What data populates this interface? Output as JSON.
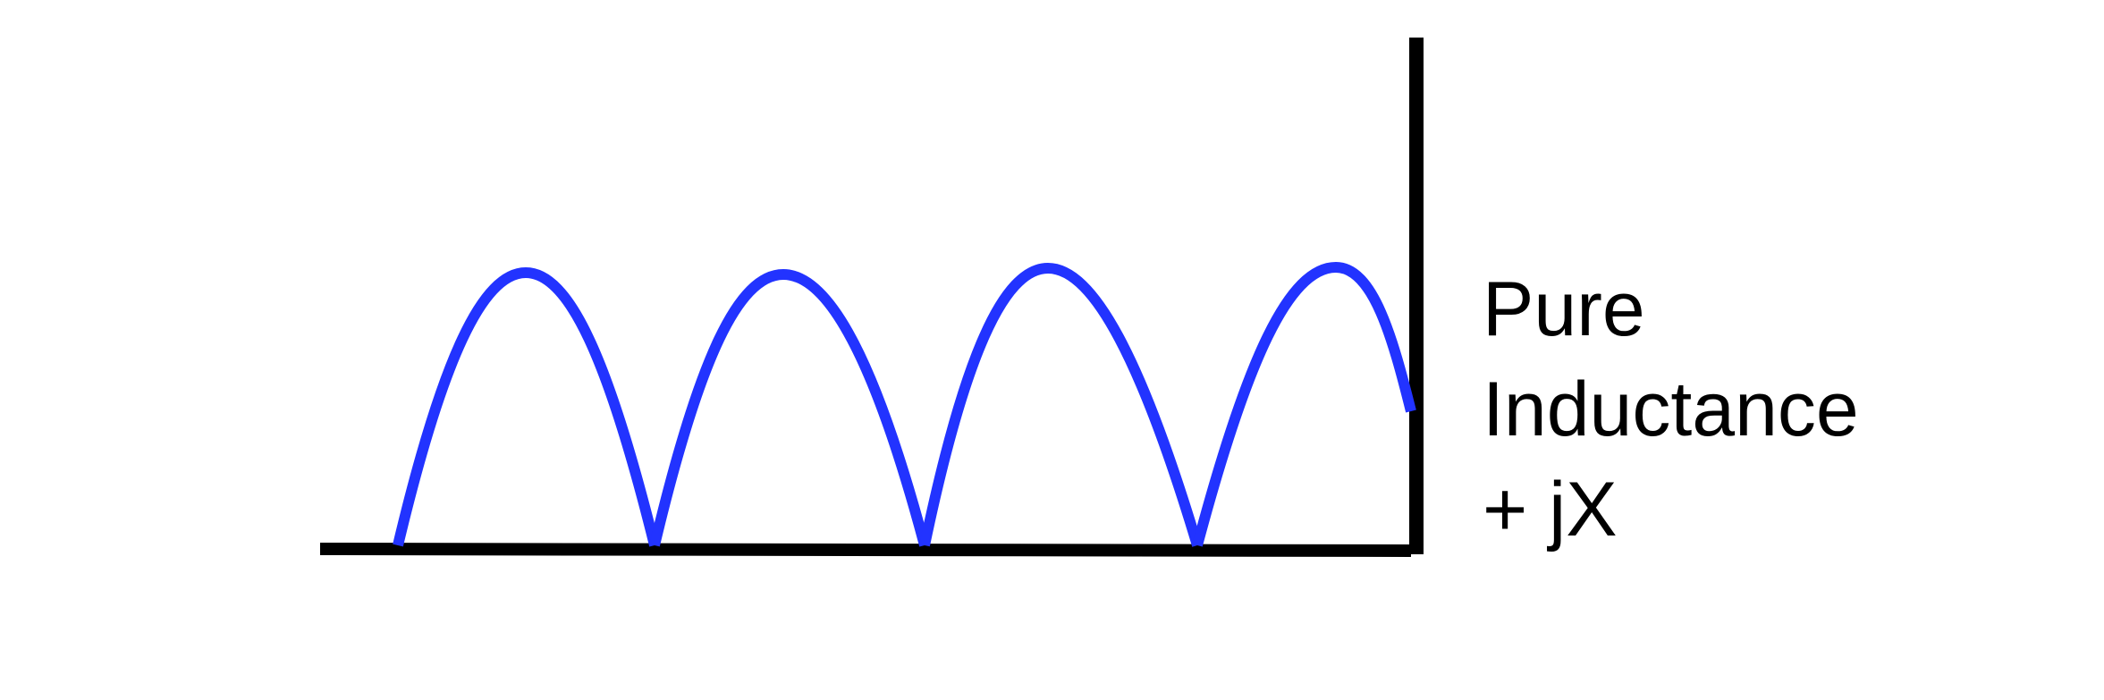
{
  "diagram": {
    "label": {
      "line1": "Pure",
      "line2": "Inductance",
      "line3": "+ jX"
    },
    "colors": {
      "wave": "#2233ff",
      "axis": "#000000",
      "text": "#000000",
      "background": "#ffffff"
    },
    "wave_arches": 4
  }
}
